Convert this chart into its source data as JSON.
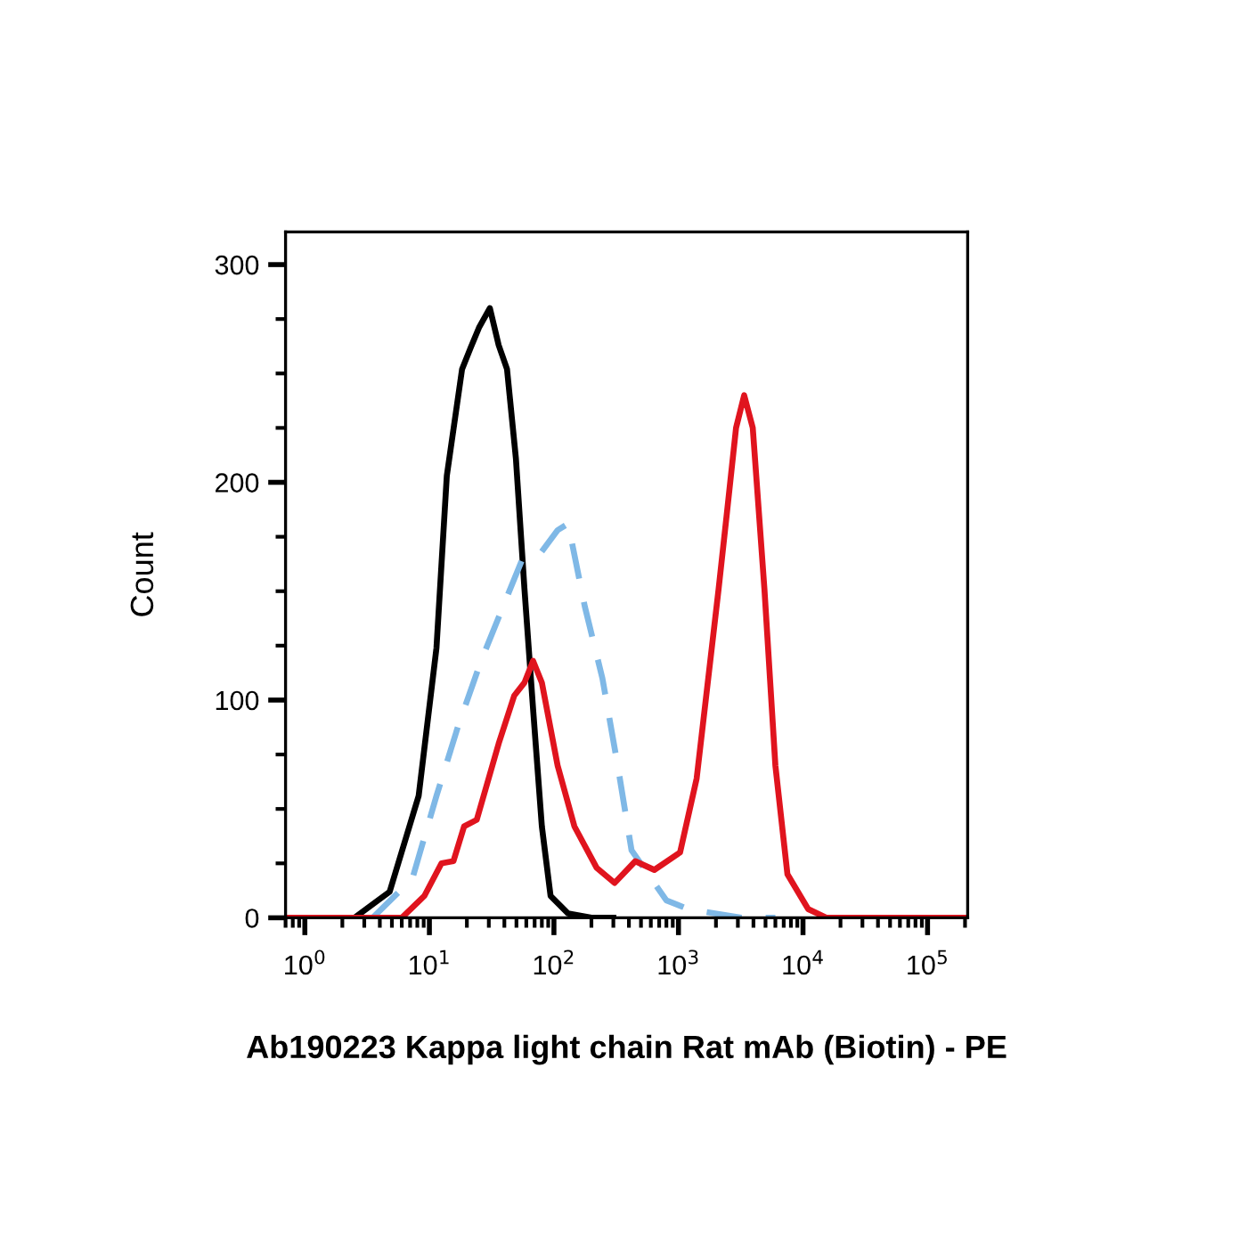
{
  "chart_data": {
    "type": "line",
    "xlabel": "Ab190223 Kappa light chain Rat mAb (Biotin) - PE",
    "ylabel": "Count",
    "log": "x",
    "xlim": [
      0.7,
      210000
    ],
    "ylim": [
      0,
      315
    ],
    "xticks": [
      {
        "value": 1,
        "label": "10$^{0}$"
      },
      {
        "value": 10,
        "label": "10$^{1}$"
      },
      {
        "value": 100,
        "label": "10$^{2}$"
      },
      {
        "value": 1000,
        "label": "10$^{3}$"
      },
      {
        "value": 10000,
        "label": "10$^{4}$"
      },
      {
        "value": 100000,
        "label": "10$^{5}$"
      }
    ],
    "yticks": [
      0,
      100,
      200,
      300
    ],
    "grid": false,
    "legend": false,
    "marker": "none",
    "series": [
      {
        "color": "#000000",
        "line_style": "solid",
        "x": [
          2.5,
          4.8,
          8.2,
          11.4,
          13.8,
          18.3,
          21.5,
          25,
          30.6,
          36,
          42,
          49.5,
          58,
          68,
          80,
          94,
          130,
          200,
          300
        ],
        "values": [
          0,
          12,
          56,
          124,
          203,
          252,
          262,
          271,
          280,
          263,
          252,
          211,
          151,
          96,
          42,
          10,
          2,
          0,
          0
        ]
      },
      {
        "color": "#7fb8e6",
        "line_style": "dashed",
        "x": [
          3.5,
          7.3,
          11.4,
          17,
          26,
          41,
          56,
          77,
          107,
          130,
          177,
          245,
          325,
          420,
          800,
          1200,
          3200,
          6000
        ],
        "values": [
          0,
          18,
          56,
          88,
          118,
          146,
          165,
          167,
          178,
          181,
          143,
          110,
          70,
          31,
          8,
          4,
          0,
          0
        ]
      },
      {
        "color": "#e0141e",
        "line_style": "solid",
        "x": [
          0.7,
          6,
          9.1,
          12.5,
          15.6,
          19,
          24,
          36,
          48,
          58,
          68,
          80,
          107,
          146,
          220,
          307,
          450,
          640,
          1030,
          1400,
          2100,
          2450,
          2900,
          3370,
          3950,
          4900,
          6000,
          7500,
          11000,
          15500,
          210000
        ],
        "values": [
          0,
          0,
          10,
          25,
          26,
          42,
          45,
          80,
          102,
          108,
          118,
          108,
          70,
          42,
          23,
          16,
          26,
          22,
          30,
          64,
          151,
          186,
          225,
          240,
          225,
          151,
          70,
          20,
          4,
          0,
          0
        ]
      }
    ]
  }
}
